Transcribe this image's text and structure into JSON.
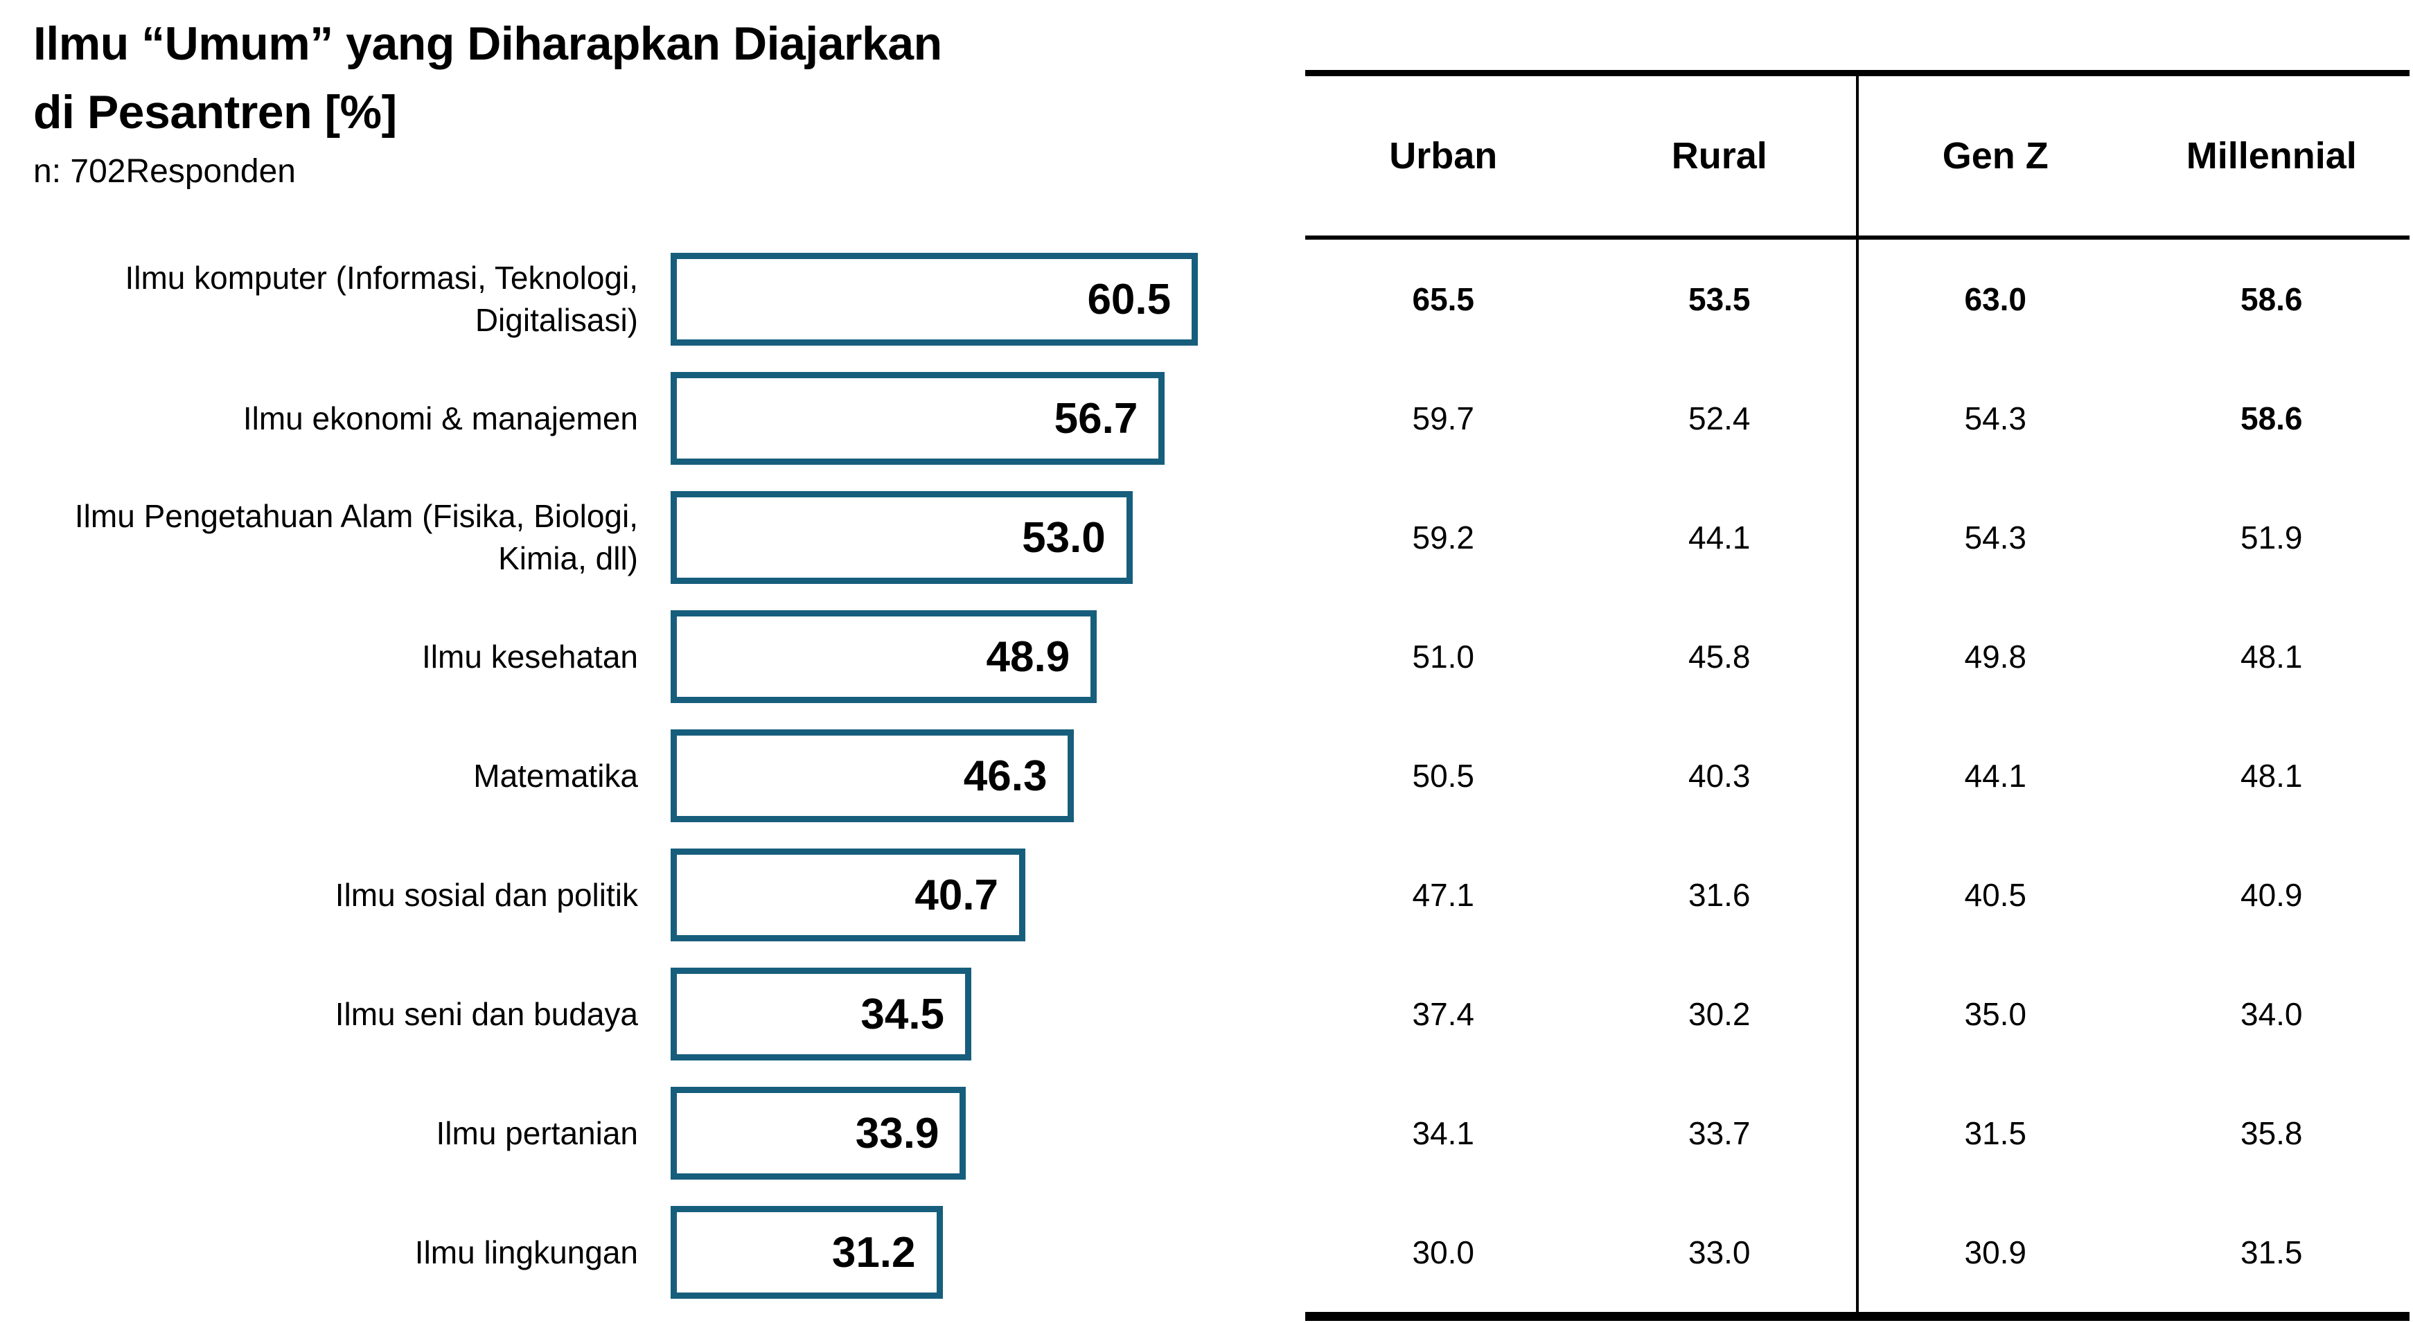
{
  "header": {
    "title_line1": "Ilmu “Umum” yang Diharapkan Diajarkan",
    "title_line2": "di Pesantren [%]",
    "sample_size": "n: 702Responden"
  },
  "colors": {
    "accent": "#175E7D",
    "text": "#000000",
    "bar_fill": "#FFFFFF"
  },
  "chart_data": {
    "type": "bar",
    "orientation": "horizontal",
    "title": "Ilmu “Umum” yang Diharapkan Diajarkan di Pesantren [%]",
    "subtitle": "n: 702Responden",
    "xlabel": "",
    "ylabel": "",
    "xlim": [
      0,
      62
    ],
    "grid": false,
    "legend": "none",
    "bar_style": {
      "fill": "#FFFFFF",
      "border": "#175E7D"
    },
    "categories": [
      "Ilmu komputer (Informasi, Teknologi, Digitalisasi)",
      "Ilmu ekonomi & manajemen",
      "Ilmu Pengetahuan Alam (Fisika, Biologi, Kimia, dll)",
      "Ilmu kesehatan",
      "Matematika",
      "Ilmu sosial dan politik",
      "Ilmu seni dan budaya",
      "Ilmu pertanian",
      "Ilmu lingkungan"
    ],
    "values": [
      "60.5",
      "56.7",
      "53.0",
      "48.9",
      "46.3",
      "40.7",
      "34.5",
      "33.9",
      "31.2"
    ]
  },
  "table": {
    "columns": [
      "Urban",
      "Rural",
      "Gen Z",
      "Millennial"
    ],
    "rows": [
      {
        "values": [
          "65.5",
          "53.5",
          "63.0",
          "58.6"
        ],
        "bold": [
          true,
          true,
          true,
          true
        ]
      },
      {
        "values": [
          "59.7",
          "52.4",
          "54.3",
          "58.6"
        ],
        "bold": [
          false,
          false,
          false,
          true
        ]
      },
      {
        "values": [
          "59.2",
          "44.1",
          "54.3",
          "51.9"
        ],
        "bold": [
          false,
          false,
          false,
          false
        ]
      },
      {
        "values": [
          "51.0",
          "45.8",
          "49.8",
          "48.1"
        ],
        "bold": [
          false,
          false,
          false,
          false
        ]
      },
      {
        "values": [
          "50.5",
          "40.3",
          "44.1",
          "48.1"
        ],
        "bold": [
          false,
          false,
          false,
          false
        ]
      },
      {
        "values": [
          "47.1",
          "31.6",
          "40.5",
          "40.9"
        ],
        "bold": [
          false,
          false,
          false,
          false
        ]
      },
      {
        "values": [
          "37.4",
          "30.2",
          "35.0",
          "34.0"
        ],
        "bold": [
          false,
          false,
          false,
          false
        ]
      },
      {
        "values": [
          "34.1",
          "33.7",
          "31.5",
          "35.8"
        ],
        "bold": [
          false,
          false,
          false,
          false
        ]
      },
      {
        "values": [
          "30.0",
          "33.0",
          "30.9",
          "31.5"
        ],
        "bold": [
          false,
          false,
          false,
          false
        ]
      }
    ]
  }
}
